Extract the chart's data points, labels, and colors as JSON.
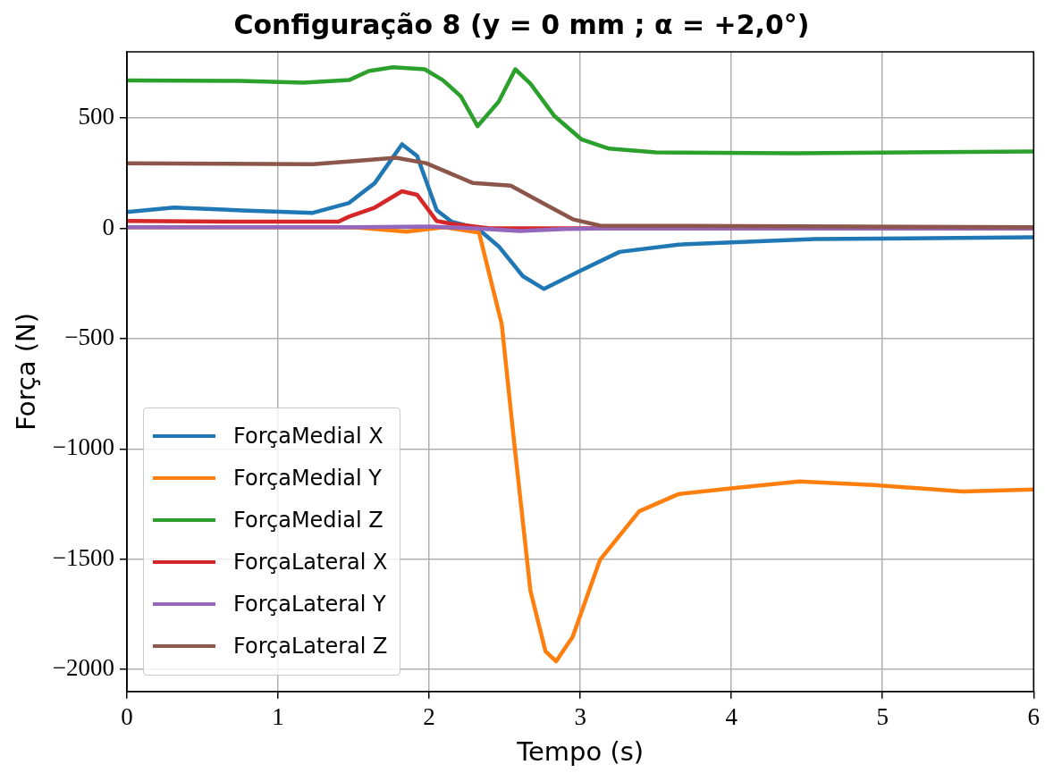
{
  "chart_data": {
    "type": "line",
    "title": "Configuração 8 (y = 0 mm ; α = +2,0°)",
    "xlabel": "Tempo (s)",
    "ylabel": "Força (N)",
    "xlim": [
      0,
      6
    ],
    "ylim": [
      -2100,
      800
    ],
    "xticks": [
      0,
      1,
      2,
      3,
      4,
      5,
      6
    ],
    "yticks": [
      -2000,
      -1500,
      -1000,
      -500,
      0,
      500
    ],
    "grid": true,
    "legend": "bottom left",
    "marker": "none",
    "line_style": "solid",
    "series": [
      {
        "name": "ForçaMedial X",
        "color": "#1f77b4",
        "x": [
          0,
          0.31,
          0.8,
          1.23,
          1.47,
          1.64,
          1.82,
          1.92,
          2.05,
          2.15,
          2.32,
          2.46,
          2.62,
          2.76,
          3.0,
          3.26,
          3.65,
          4.55,
          6
        ],
        "values": [
          74,
          94,
          80,
          70,
          115,
          205,
          381,
          328,
          82,
          29,
          0,
          -82,
          -217,
          -275,
          -193,
          -107,
          -74,
          -49,
          -41
        ]
      },
      {
        "name": "ForçaMedial Y",
        "color": "#ff7f0e",
        "x": [
          0,
          1.5,
          1.85,
          2.1,
          2.33,
          2.48,
          2.56,
          2.67,
          2.77,
          2.84,
          2.95,
          3.13,
          3.39,
          3.65,
          4.04,
          4.45,
          4.94,
          5.53,
          6
        ],
        "values": [
          5,
          5,
          -15,
          5,
          -20,
          -434,
          -955,
          -1643,
          -1918,
          -1963,
          -1852,
          -1504,
          -1283,
          -1205,
          -1176,
          -1148,
          -1164,
          -1193,
          -1184
        ]
      },
      {
        "name": "ForçaMedial Z",
        "color": "#2ca02c",
        "x": [
          0,
          0.74,
          1.17,
          1.47,
          1.6,
          1.76,
          1.97,
          2.09,
          2.21,
          2.32,
          2.46,
          2.57,
          2.67,
          2.83,
          3.01,
          3.19,
          3.5,
          4.42,
          6
        ],
        "values": [
          670,
          668,
          660,
          672,
          713,
          730,
          721,
          672,
          598,
          463,
          574,
          721,
          656,
          508,
          402,
          361,
          344,
          340,
          348
        ]
      },
      {
        "name": "ForçaLateral X",
        "color": "#d62728",
        "x": [
          0,
          0.8,
          1.4,
          1.47,
          1.64,
          1.82,
          1.92,
          2.05,
          2.15,
          2.4,
          6
        ],
        "values": [
          33,
          30,
          30,
          53,
          94,
          168,
          152,
          33,
          20,
          0,
          0
        ]
      },
      {
        "name": "ForçaLateral Y",
        "color": "#9467bd",
        "x": [
          0,
          1.5,
          2.0,
          2.3,
          2.6,
          2.9,
          3.2,
          6
        ],
        "values": [
          5,
          5,
          8,
          0,
          -12,
          -3,
          0,
          0
        ]
      },
      {
        "name": "ForçaLateral Z",
        "color": "#8c564b",
        "x": [
          0,
          1.23,
          1.54,
          1.78,
          1.98,
          2.29,
          2.54,
          2.76,
          2.95,
          3.13,
          6
        ],
        "values": [
          295,
          291,
          307,
          320,
          295,
          205,
          193,
          111,
          41,
          12,
          5
        ]
      }
    ]
  }
}
